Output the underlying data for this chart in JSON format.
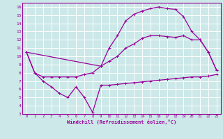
{
  "xlabel": "Windchill (Refroidissement éolien,°C)",
  "bg_color": "#cce8e8",
  "line_color": "#990099",
  "grid_color": "#ffffff",
  "line1_x": [
    0,
    1,
    2,
    3,
    4,
    5,
    6,
    7,
    8,
    9,
    10,
    11,
    12,
    13,
    14,
    15,
    16,
    17,
    18,
    19,
    20,
    21,
    22,
    23
  ],
  "line1_y": [
    10.5,
    8.0,
    7.0,
    6.3,
    5.5,
    5.0,
    6.3,
    5.0,
    3.2,
    6.5,
    6.5,
    6.6,
    6.7,
    6.8,
    6.9,
    7.0,
    7.1,
    7.2,
    7.3,
    7.4,
    7.5,
    7.5,
    7.6,
    7.8
  ],
  "line2_x": [
    0,
    1,
    2,
    3,
    4,
    5,
    6,
    7,
    8,
    9,
    10,
    11,
    12,
    13,
    14,
    15,
    16,
    17,
    18,
    19,
    20,
    21,
    22,
    23
  ],
  "line2_y": [
    10.5,
    8.0,
    7.5,
    7.5,
    7.5,
    7.5,
    7.5,
    7.8,
    8.0,
    8.8,
    9.4,
    10.0,
    11.0,
    11.5,
    12.2,
    12.5,
    12.5,
    12.4,
    12.3,
    12.5,
    12.0,
    12.0,
    10.5,
    8.3
  ],
  "line3_x": [
    0,
    9,
    10,
    11,
    12,
    13,
    14,
    15,
    16,
    17,
    18,
    19,
    20,
    21,
    22,
    23
  ],
  "line3_y": [
    10.5,
    8.8,
    11.0,
    12.5,
    14.3,
    15.1,
    15.5,
    15.8,
    16.0,
    15.8,
    15.7,
    14.8,
    13.0,
    12.0,
    10.5,
    8.3
  ],
  "xlim": [
    -0.5,
    23.5
  ],
  "ylim": [
    3,
    16.5
  ],
  "yticks": [
    3,
    4,
    5,
    6,
    7,
    8,
    9,
    10,
    11,
    12,
    13,
    14,
    15,
    16
  ],
  "xticks": [
    0,
    1,
    2,
    3,
    4,
    5,
    6,
    7,
    8,
    9,
    10,
    11,
    12,
    13,
    14,
    15,
    16,
    17,
    18,
    19,
    20,
    21,
    22,
    23
  ]
}
